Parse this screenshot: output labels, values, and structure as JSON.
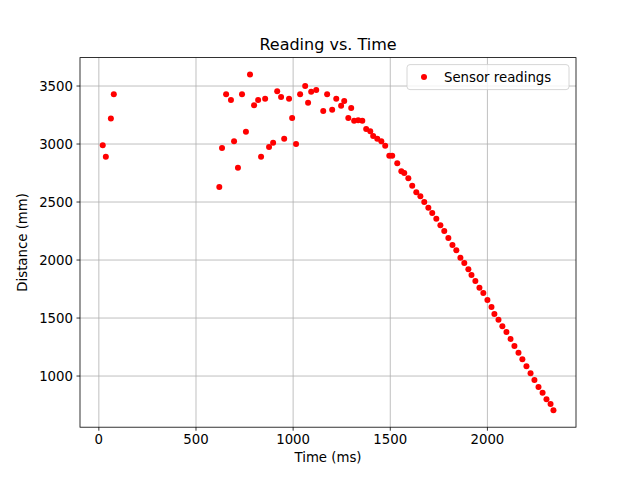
{
  "chart_data": {
    "type": "scatter",
    "title": "Reading vs. Time",
    "x_label": "Time (ms)",
    "y_label": "Distance (mm)",
    "x": [
      20,
      36,
      62,
      77,
      620,
      634,
      655,
      680,
      696,
      716,
      737,
      757,
      778,
      799,
      820,
      835,
      856,
      876,
      897,
      918,
      938,
      954,
      979,
      995,
      1015,
      1036,
      1062,
      1077,
      1093,
      1119,
      1155,
      1175,
      1201,
      1222,
      1247,
      1263,
      1284,
      1299,
      1314,
      1335,
      1356,
      1376,
      1397,
      1412,
      1433,
      1454,
      1474,
      1495,
      1510,
      1536,
      1557,
      1572,
      1593,
      1613,
      1634,
      1655,
      1675,
      1696,
      1716,
      1737,
      1758,
      1778,
      1799,
      1820,
      1840,
      1861,
      1881,
      1902,
      1918,
      1938,
      1959,
      1979,
      2000,
      2021,
      2036,
      2057,
      2077,
      2098,
      2119,
      2139,
      2160,
      2180,
      2201,
      2222,
      2242,
      2263,
      2284,
      2304,
      2325,
      2340
    ],
    "series": [
      {
        "name": "Sensor readings",
        "color": "#ff0000",
        "marker": "circle",
        "values": [
          2990,
          2890,
          3220,
          3430,
          2630,
          2965,
          3430,
          3380,
          3025,
          2795,
          3430,
          3105,
          3600,
          3335,
          3380,
          2890,
          3390,
          2975,
          3010,
          3455,
          3405,
          3045,
          3390,
          3225,
          3000,
          3430,
          3500,
          3355,
          3450,
          3465,
          3285,
          3430,
          3295,
          3390,
          3330,
          3370,
          3225,
          3310,
          3200,
          3205,
          3200,
          3130,
          3110,
          3070,
          3045,
          3025,
          2985,
          2900,
          2900,
          2835,
          2765,
          2750,
          2705,
          2640,
          2585,
          2550,
          2500,
          2450,
          2405,
          2355,
          2300,
          2250,
          2190,
          2130,
          2085,
          2020,
          1975,
          1920,
          1870,
          1820,
          1760,
          1715,
          1655,
          1595,
          1535,
          1485,
          1430,
          1380,
          1320,
          1260,
          1200,
          1145,
          1085,
          1025,
          965,
          905,
          855,
          800,
          760,
          705
        ]
      }
    ],
    "xlim": [
      -97,
      2456
    ],
    "ylim": [
      559,
      3745
    ],
    "xticks": [
      0,
      500,
      1000,
      1500,
      2000
    ],
    "yticks": [
      1000,
      1500,
      2000,
      2500,
      3000,
      3500
    ],
    "grid": true,
    "legend": "upper right"
  }
}
